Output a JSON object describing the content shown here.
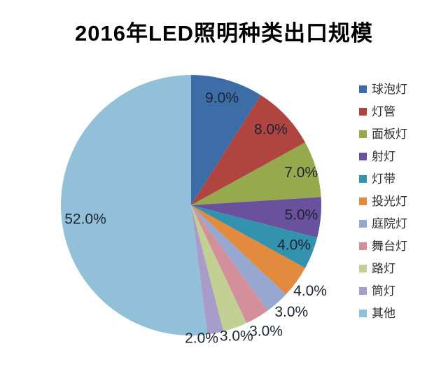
{
  "page": {
    "background": "#ffffff"
  },
  "header": {
    "title": "2016年LED照明种类出口规模"
  },
  "chart_data": {
    "type": "pie",
    "title": "2016年LED照明种类出口规模",
    "categories": [
      "球泡灯",
      "灯管",
      "面板灯",
      "射灯",
      "灯带",
      "投光灯",
      "庭院灯",
      "舞台灯",
      "路灯",
      "筒灯",
      "其他"
    ],
    "values": [
      9.0,
      8.0,
      7.0,
      5.0,
      4.0,
      4.0,
      3.0,
      3.0,
      3.0,
      2.0,
      52.0
    ],
    "unit": "percent",
    "data_labels": [
      "9.0%",
      "8.0%",
      "7.0%",
      "5.0%",
      "4.0%",
      "4.0%",
      "3.0%",
      "3.0%",
      "3.0%",
      "2.0%",
      "52.0%"
    ],
    "colors": [
      "#3c6da6",
      "#b04441",
      "#97a94d",
      "#6a519e",
      "#3392ad",
      "#e28a3d",
      "#96a7d0",
      "#d3909a",
      "#c2d094",
      "#a89cc8",
      "#92c0d8"
    ],
    "label_color": "#1c2433",
    "legend_position": "right",
    "start_angle_deg": 0,
    "direction": "clockwise",
    "label_layout": [
      {
        "pos": "inside",
        "r": 0.85
      },
      {
        "pos": "inside",
        "r": 0.84
      },
      {
        "pos": "inside",
        "r": 0.88
      },
      {
        "pos": "inside",
        "r": 0.85
      },
      {
        "pos": "inside",
        "r": 0.85
      },
      {
        "pos": "outside",
        "r": 1.13
      },
      {
        "pos": "outside",
        "r": 1.13,
        "angle": 137
      },
      {
        "pos": "outside",
        "r": 1.13
      },
      {
        "pos": "outside",
        "r": 1.07,
        "angle": 161
      },
      {
        "pos": "outside",
        "r": 1.03,
        "angle": 175.5
      },
      {
        "pos": "inside",
        "r": 0.82,
        "angle": 262
      }
    ]
  }
}
